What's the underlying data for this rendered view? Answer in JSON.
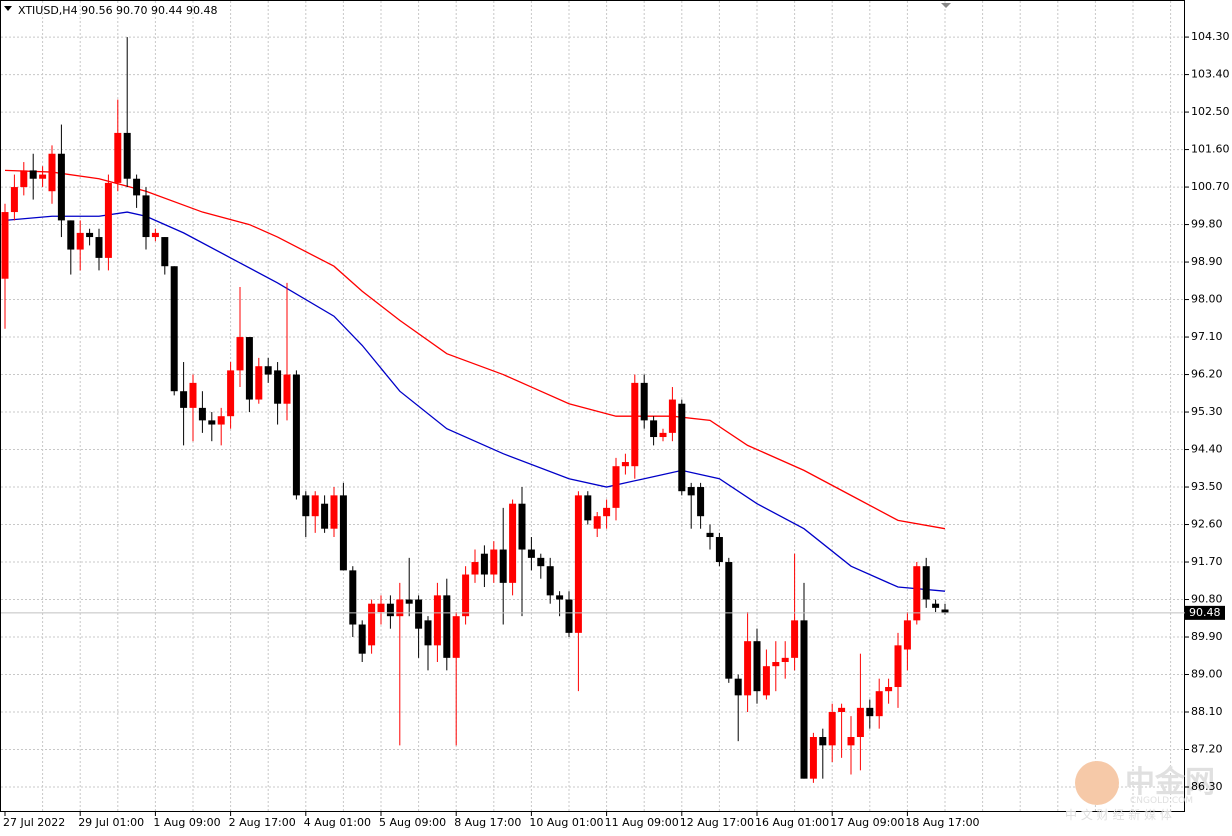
{
  "chart_data": {
    "type": "candlestick",
    "title": "XTIUSD,H4  90.56 90.70 90.44 90.48",
    "categories": [
      "27 Jul 2022",
      null,
      null,
      null,
      null,
      null,
      null,
      null,
      "29 Jul 01:00",
      null,
      null,
      null,
      null,
      null,
      null,
      null,
      "1 Aug 09:00",
      null,
      null,
      null,
      null,
      null,
      null,
      null,
      "2 Aug 17:00",
      null,
      null,
      null,
      null,
      null,
      null,
      null,
      "4 Aug 01:00",
      null,
      null,
      null,
      null,
      null,
      null,
      null,
      "5 Aug 09:00",
      null,
      null,
      null,
      null,
      null,
      null,
      null,
      "8 Aug 17:00",
      null,
      null,
      null,
      null,
      null,
      null,
      null,
      "10 Aug 01:00",
      null,
      null,
      null,
      null,
      null,
      null,
      null,
      "11 Aug 09:00",
      null,
      null,
      null,
      null,
      null,
      null,
      null,
      "12 Aug 17:00",
      null,
      null,
      null,
      null,
      null,
      null,
      null,
      "16 Aug 01:00",
      null,
      null,
      null,
      null,
      null,
      null,
      null,
      "17 Aug 09:00",
      null,
      null,
      null,
      null,
      null,
      null,
      null,
      "18 Aug 17:00",
      null,
      null,
      null,
      null
    ],
    "open": [
      98.5,
      100.1,
      100.7,
      101.1,
      100.9,
      100.6,
      101.5,
      99.9,
      99.2,
      99.6,
      99.5,
      99.0,
      100.8,
      102.0,
      100.9,
      100.5,
      99.5,
      99.5,
      98.8,
      95.8,
      95.4,
      95.4,
      95.1,
      95.0,
      95.2,
      96.3,
      97.1,
      95.6,
      96.4,
      96.3,
      95.5,
      96.2,
      93.3,
      92.8,
      93.1,
      92.5,
      93.3,
      91.5,
      90.2,
      89.7,
      90.5,
      90.7,
      90.4,
      90.8,
      90.8,
      90.3,
      89.7,
      90.9,
      89.4,
      90.4,
      91.4,
      91.9,
      91.4,
      92.0,
      91.2,
      93.1,
      92.0,
      91.8,
      91.6,
      90.9,
      90.8,
      90.0,
      93.3,
      92.5,
      92.8,
      93.0,
      94.0,
      94.0,
      96.0,
      95.1,
      94.7,
      94.8,
      95.5,
      93.5,
      93.5,
      92.4,
      92.3,
      91.7,
      88.9,
      88.5,
      89.8,
      88.5,
      89.2,
      89.3,
      89.4,
      90.3,
      86.5,
      87.5,
      87.3,
      88.1,
      87.3,
      87.5,
      88.2,
      88.0,
      88.6,
      88.7,
      89.6,
      90.3,
      91.6,
      90.7,
      90.56
    ],
    "high": [
      100.3,
      101.0,
      101.3,
      101.5,
      101.2,
      101.7,
      102.2,
      99.9,
      99.9,
      99.7,
      99.7,
      101.0,
      102.8,
      104.3,
      101.0,
      100.7,
      99.7,
      99.5,
      98.8,
      96.5,
      96.2,
      95.8,
      95.3,
      95.4,
      96.5,
      98.3,
      97.1,
      96.6,
      96.6,
      96.5,
      98.4,
      96.3,
      93.4,
      93.4,
      93.3,
      93.5,
      93.6,
      91.6,
      90.3,
      90.8,
      90.9,
      90.9,
      91.2,
      91.8,
      90.9,
      90.4,
      91.2,
      91.3,
      90.5,
      91.6,
      92.0,
      92.1,
      92.2,
      93.0,
      93.2,
      93.5,
      92.3,
      91.9,
      91.8,
      91.0,
      91.0,
      93.4,
      93.4,
      92.9,
      93.2,
      94.2,
      94.3,
      96.2,
      96.2,
      95.2,
      94.9,
      95.9,
      95.6,
      93.6,
      93.6,
      92.6,
      92.4,
      91.8,
      89.0,
      90.5,
      90.1,
      89.6,
      89.8,
      89.8,
      91.9,
      91.2,
      87.6,
      87.7,
      88.3,
      88.3,
      88.0,
      89.5,
      88.4,
      88.9,
      88.9,
      90.0,
      90.5,
      91.7,
      91.8,
      90.8,
      90.7
    ],
    "low": [
      97.3,
      99.9,
      100.5,
      100.4,
      100.7,
      100.3,
      99.5,
      98.6,
      98.7,
      99.3,
      98.7,
      98.7,
      100.6,
      100.7,
      100.2,
      99.2,
      99.4,
      98.6,
      95.7,
      94.5,
      94.6,
      94.8,
      94.6,
      94.5,
      94.9,
      95.9,
      95.3,
      95.5,
      96.0,
      95.0,
      95.1,
      93.2,
      92.3,
      92.4,
      92.4,
      92.3,
      91.5,
      89.9,
      89.3,
      89.5,
      90.2,
      90.1,
      87.3,
      90.4,
      89.4,
      89.1,
      89.3,
      89.1,
      87.3,
      90.2,
      91.2,
      91.1,
      91.2,
      90.2,
      90.9,
      90.4,
      91.5,
      91.3,
      90.7,
      90.4,
      89.9,
      88.6,
      92.6,
      92.3,
      92.5,
      92.7,
      93.8,
      93.7,
      94.9,
      94.5,
      94.6,
      94.6,
      93.3,
      92.5,
      92.5,
      92.0,
      91.6,
      88.8,
      87.4,
      88.1,
      88.3,
      88.4,
      88.6,
      88.9,
      89.1,
      86.5,
      86.4,
      86.5,
      86.9,
      87.0,
      86.6,
      86.7,
      87.7,
      87.7,
      88.3,
      88.2,
      89.1,
      90.2,
      90.6,
      90.5,
      90.44
    ],
    "close": [
      100.1,
      100.7,
      101.1,
      100.9,
      101.0,
      101.5,
      99.9,
      99.2,
      99.6,
      99.5,
      99.0,
      100.8,
      102.0,
      100.9,
      100.5,
      99.5,
      99.6,
      98.8,
      95.8,
      95.4,
      96.0,
      95.1,
      95.0,
      95.2,
      96.3,
      97.1,
      95.6,
      96.4,
      96.2,
      95.5,
      96.2,
      93.3,
      92.8,
      93.3,
      92.5,
      93.3,
      91.5,
      90.2,
      89.5,
      90.7,
      90.7,
      90.4,
      90.8,
      90.7,
      90.1,
      89.7,
      90.9,
      89.4,
      90.4,
      91.4,
      91.7,
      91.4,
      92.0,
      91.2,
      93.1,
      92.0,
      91.8,
      91.6,
      90.9,
      90.8,
      90.0,
      93.3,
      92.7,
      92.8,
      93.0,
      94.0,
      94.1,
      96.0,
      95.1,
      94.7,
      94.8,
      95.6,
      93.4,
      93.3,
      92.8,
      92.3,
      91.7,
      88.9,
      88.5,
      89.8,
      88.6,
      89.2,
      89.3,
      89.4,
      90.3,
      86.5,
      87.5,
      87.3,
      88.1,
      88.2,
      87.5,
      88.2,
      88.0,
      88.6,
      88.7,
      89.7,
      90.3,
      91.6,
      90.8,
      90.6,
      90.48
    ],
    "up_color": "#ff0000",
    "down_color": "#000000",
    "lines": [
      {
        "color": "#ff0000",
        "x": [
          0,
          5,
          10,
          15,
          21,
          26,
          29,
          35,
          38,
          42,
          47,
          53,
          56,
          60,
          65,
          71,
          75,
          79,
          85,
          90,
          95,
          100
        ],
        "values": [
          101.1,
          101.06,
          100.9,
          100.6,
          100.1,
          99.8,
          99.5,
          98.8,
          98.2,
          97.5,
          96.7,
          96.2,
          95.9,
          95.5,
          95.2,
          95.2,
          95.1,
          94.5,
          93.9,
          93.3,
          92.7,
          92.5
        ]
      },
      {
        "color": "#0000c8",
        "x": [
          0,
          5,
          10,
          13,
          15,
          19,
          24,
          29,
          35,
          38,
          42,
          47,
          53,
          60,
          64,
          68,
          72,
          76,
          80,
          85,
          90,
          95,
          100
        ],
        "values": [
          99.9,
          100.0,
          100.0,
          100.1,
          100.0,
          99.6,
          99.0,
          98.4,
          97.6,
          96.9,
          95.8,
          94.9,
          94.3,
          93.7,
          93.5,
          93.7,
          93.9,
          93.7,
          93.1,
          92.5,
          91.6,
          91.1,
          91.0
        ]
      }
    ],
    "ylim": [
      85.7,
      105.19
    ],
    "yticks": [
      {
        "value": 104.3,
        "label": "104.30"
      },
      {
        "value": 103.4,
        "label": "103.40"
      },
      {
        "value": 102.5,
        "label": "102.50"
      },
      {
        "value": 101.6,
        "label": "101.60"
      },
      {
        "value": 100.7,
        "label": "100.70"
      },
      {
        "value": 99.8,
        "label": "99.80"
      },
      {
        "value": 98.9,
        "label": "98.90"
      },
      {
        "value": 98.0,
        "label": "98.00"
      },
      {
        "value": 97.1,
        "label": "97.10"
      },
      {
        "value": 96.2,
        "label": "96.20"
      },
      {
        "value": 95.3,
        "label": "95.30"
      },
      {
        "value": 94.4,
        "label": "94.40"
      },
      {
        "value": 93.5,
        "label": "93.50"
      },
      {
        "value": 92.6,
        "label": "92.60"
      },
      {
        "value": 91.7,
        "label": "91.70"
      },
      {
        "value": 90.8,
        "label": "90.80"
      },
      {
        "value": 89.9,
        "label": "89.90"
      },
      {
        "value": 89.0,
        "label": "89.00"
      },
      {
        "value": 88.1,
        "label": "88.10"
      },
      {
        "value": 87.2,
        "label": "87.20"
      },
      {
        "value": 86.3,
        "label": "86.30"
      }
    ],
    "last_price": 90.48,
    "grid": true,
    "watermark": {
      "name": "中金网",
      "url": "CNGOLD.COM",
      "tagline": "中 文 财 经 新 媒 体"
    }
  }
}
